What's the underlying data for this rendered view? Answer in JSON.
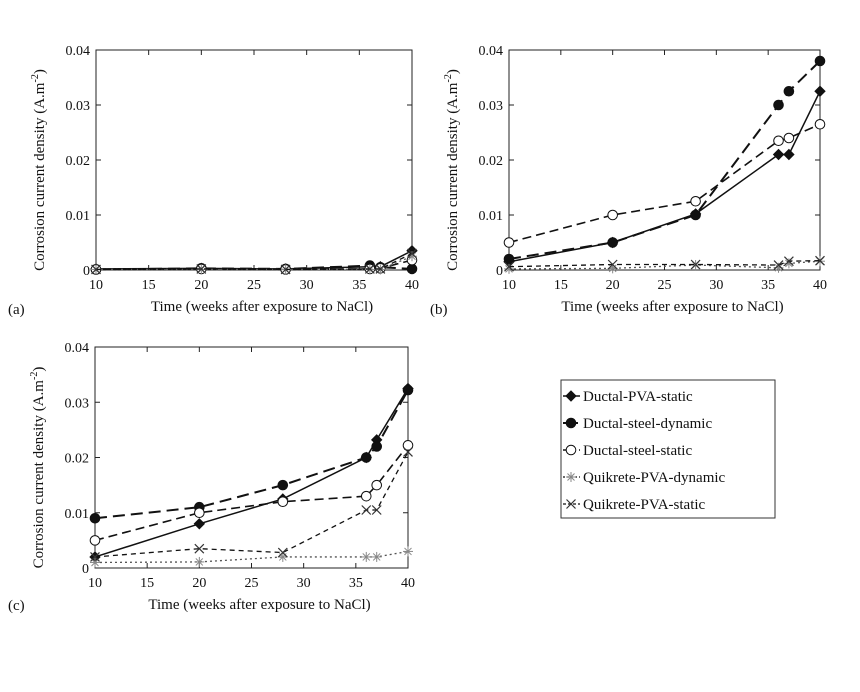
{
  "chart_data": [
    {
      "type": "line",
      "panel_label": "(a)",
      "xlabel": "Time (weeks after exposure to NaCl)",
      "ylabel": "Corrosion current density (A.m",
      "ylabel_sup": "-2",
      "ylabel_close": ")",
      "xlim": [
        10,
        40
      ],
      "ylim": [
        0,
        0.04
      ],
      "x_ticks": [
        "10",
        "15",
        "20",
        "25",
        "30",
        "35",
        "40"
      ],
      "y_ticks": [
        "0",
        "0.01",
        "0.02",
        "0.03",
        "0.04"
      ],
      "series": [
        {
          "name": "Ductal-PVA-static",
          "x": [
            10,
            20,
            28,
            36,
            37,
            40
          ],
          "y": [
            0.0002,
            0.0003,
            0.0002,
            0.0006,
            0.0006,
            0.0035
          ]
        },
        {
          "name": "Ductal-steel-dynamic",
          "x": [
            10,
            20,
            28,
            36,
            37,
            40
          ],
          "y": [
            0.0001,
            0.0003,
            0.0002,
            0.0008,
            0.0005,
            0.0002
          ]
        },
        {
          "name": "Ductal-steel-static",
          "x": [
            10,
            20,
            28,
            36,
            37,
            40
          ],
          "y": [
            0.0001,
            0.0002,
            0.0001,
            0.0002,
            0.0003,
            0.0018
          ]
        },
        {
          "name": "Quikrete-PVA-dynamic",
          "x": [
            10,
            20,
            28,
            36,
            37,
            40
          ],
          "y": [
            0.0001,
            0.0001,
            0.0001,
            0.0001,
            0.0001,
            0.0025
          ]
        },
        {
          "name": "Quikrete-PVA-static",
          "x": [
            10,
            20,
            28,
            36,
            37,
            40
          ],
          "y": [
            0.0001,
            0.0002,
            0.0001,
            0.0002,
            0.0002,
            0.003
          ]
        }
      ]
    },
    {
      "type": "line",
      "panel_label": "(b)",
      "xlabel": "Time (weeks after exposure to NaCl)",
      "ylabel": "Corrosion current density (A.m",
      "ylabel_sup": "-2",
      "ylabel_close": ")",
      "xlim": [
        10,
        40
      ],
      "ylim": [
        0,
        0.04
      ],
      "x_ticks": [
        "10",
        "15",
        "20",
        "25",
        "30",
        "35",
        "40"
      ],
      "y_ticks": [
        "0",
        "0.01",
        "0.02",
        "0.03",
        "0.04"
      ],
      "series": [
        {
          "name": "Ductal-PVA-static",
          "x": [
            10,
            20,
            28,
            36,
            37,
            40
          ],
          "y": [
            0.0015,
            0.005,
            0.0102,
            0.021,
            0.021,
            0.0325
          ]
        },
        {
          "name": "Ductal-steel-dynamic",
          "x": [
            10,
            20,
            28,
            36,
            37,
            40
          ],
          "y": [
            0.002,
            0.005,
            0.01,
            0.03,
            0.0325,
            0.038
          ]
        },
        {
          "name": "Ductal-steel-static",
          "x": [
            10,
            20,
            28,
            36,
            37,
            40
          ],
          "y": [
            0.005,
            0.01,
            0.0125,
            0.0235,
            0.024,
            0.0265
          ]
        },
        {
          "name": "Quikrete-PVA-dynamic",
          "x": [
            10,
            20,
            28,
            36,
            37,
            40
          ],
          "y": [
            0.0002,
            0.0003,
            0.0009,
            0.0004,
            0.0012,
            0.0016
          ]
        },
        {
          "name": "Quikrete-PVA-static",
          "x": [
            10,
            20,
            28,
            36,
            37,
            40
          ],
          "y": [
            0.0006,
            0.001,
            0.001,
            0.0009,
            0.0016,
            0.0017
          ]
        }
      ]
    },
    {
      "type": "line",
      "panel_label": "(c)",
      "xlabel": "Time (weeks after exposure to NaCl)",
      "ylabel": "Corrosion current density (A.m",
      "ylabel_sup": "-2",
      "ylabel_close": ")",
      "xlim": [
        10,
        40
      ],
      "ylim": [
        0,
        0.04
      ],
      "x_ticks": [
        "10",
        "15",
        "20",
        "25",
        "30",
        "35",
        "40"
      ],
      "y_ticks": [
        "0",
        "0.01",
        "0.02",
        "0.03",
        "0.04"
      ],
      "series": [
        {
          "name": "Ductal-PVA-static",
          "x": [
            10,
            20,
            28,
            36,
            37,
            40
          ],
          "y": [
            0.002,
            0.008,
            0.0125,
            0.02,
            0.0232,
            0.0325
          ]
        },
        {
          "name": "Ductal-steel-dynamic",
          "x": [
            10,
            20,
            28,
            36,
            37,
            40
          ],
          "y": [
            0.009,
            0.011,
            0.015,
            0.02,
            0.022,
            0.0322
          ]
        },
        {
          "name": "Ductal-steel-static",
          "x": [
            10,
            20,
            28,
            36,
            37,
            40
          ],
          "y": [
            0.005,
            0.01,
            0.012,
            0.013,
            0.015,
            0.0222
          ]
        },
        {
          "name": "Quikrete-PVA-dynamic",
          "x": [
            10,
            20,
            28,
            36,
            37,
            40
          ],
          "y": [
            0.001,
            0.0011,
            0.002,
            0.002,
            0.002,
            0.003
          ]
        },
        {
          "name": "Quikrete-PVA-static",
          "x": [
            10,
            20,
            28,
            36,
            37,
            40
          ],
          "y": [
            0.002,
            0.0035,
            0.0028,
            0.0105,
            0.0105,
            0.021
          ]
        }
      ]
    }
  ],
  "legend": {
    "items": [
      {
        "label": "Ductal-PVA-static",
        "marker": "diamond-filled",
        "dash": "solid"
      },
      {
        "label": "Ductal-steel-dynamic",
        "marker": "circle-filled",
        "dash": "long-dash"
      },
      {
        "label": "Ductal-steel-static",
        "marker": "circle-open",
        "dash": "dash"
      },
      {
        "label": "Quikrete-PVA-dynamic",
        "marker": "star",
        "dash": "dot"
      },
      {
        "label": "Quikrete-PVA-static",
        "marker": "x-cross",
        "dash": "short-dash"
      }
    ]
  },
  "colors": {
    "line": "#111111",
    "marker_light": "#888888",
    "axis": "#222222"
  }
}
